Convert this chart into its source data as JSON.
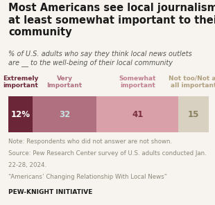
{
  "title": "Most Americans see local journalism as\nat least somewhat important to their\ncommunity",
  "subtitle": "% of U.S. adults who say they think local news outlets\nare __ to the well-being of their local community",
  "categories": [
    "Extremely\nimportant",
    "Very\nImportant",
    "Somewhat\nimportant",
    "Not too/Not at\nall important"
  ],
  "values": [
    12,
    32,
    41,
    15
  ],
  "bar_colors": [
    "#6b2737",
    "#b07080",
    "#d9a0aa",
    "#d8d0c0"
  ],
  "value_labels": [
    "12%",
    "32",
    "41",
    "15"
  ],
  "label_colors": [
    "#ffffff",
    "#c8e0e0",
    "#7a3040",
    "#8a8060"
  ],
  "category_colors": [
    "#6b2737",
    "#b07080",
    "#c08090",
    "#b0a080"
  ],
  "note_line1": "Note: Respondents who did not answer are not shown.",
  "note_line2": "Source: Pew Research Center survey of U.S. adults conducted Jan.",
  "note_line3": "22-28, 2024.",
  "note_line4": "“Americans’ Changing Relationship With Local News”",
  "footer": "PEW-KNIGHT INITIATIVE",
  "bg_color": "#f7f4ef",
  "title_color": "#1a1a1a",
  "subtitle_color": "#555550",
  "note_color": "#888878",
  "title_fontsize": 10.5,
  "subtitle_fontsize": 7.0,
  "cat_fontsize": 6.5,
  "val_fontsize": 8.5,
  "note_fontsize": 6.2,
  "footer_fontsize": 6.5
}
